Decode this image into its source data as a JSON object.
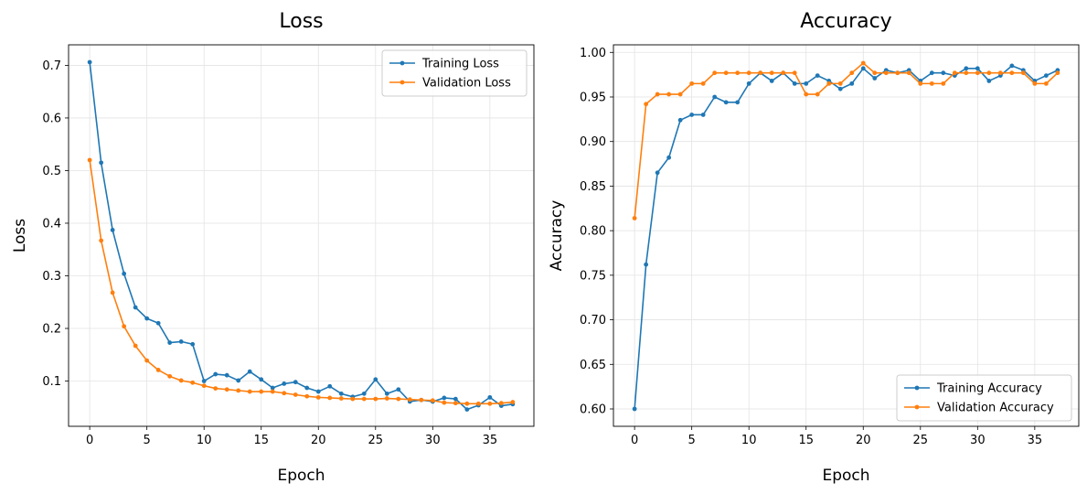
{
  "chart_data": [
    {
      "type": "line",
      "title": "Loss",
      "xlabel": "Epoch",
      "ylabel": "Loss",
      "xlim": [
        -1.85,
        38.85
      ],
      "ylim": [
        0.014,
        0.739
      ],
      "xticks": [
        0,
        5,
        10,
        15,
        20,
        25,
        30,
        35
      ],
      "yticks": [
        0.1,
        0.2,
        0.3,
        0.4,
        0.5,
        0.6,
        0.7
      ],
      "ytick_labels": [
        "0.1",
        "0.2",
        "0.3",
        "0.4",
        "0.5",
        "0.6",
        "0.7"
      ],
      "grid": true,
      "legend_position": "top-right",
      "x": [
        0,
        1,
        2,
        3,
        4,
        5,
        6,
        7,
        8,
        9,
        10,
        11,
        12,
        13,
        14,
        15,
        16,
        17,
        18,
        19,
        20,
        21,
        22,
        23,
        24,
        25,
        26,
        27,
        28,
        29,
        30,
        31,
        32,
        33,
        34,
        35,
        36,
        37
      ],
      "series": [
        {
          "name": "Training Loss",
          "color": "#1f77b4",
          "values": [
            0.706,
            0.515,
            0.387,
            0.304,
            0.24,
            0.219,
            0.21,
            0.173,
            0.175,
            0.17,
            0.1,
            0.113,
            0.111,
            0.101,
            0.118,
            0.103,
            0.087,
            0.095,
            0.098,
            0.087,
            0.08,
            0.09,
            0.076,
            0.07,
            0.076,
            0.103,
            0.076,
            0.084,
            0.061,
            0.064,
            0.061,
            0.068,
            0.066,
            0.046,
            0.054,
            0.069,
            0.053,
            0.056
          ]
        },
        {
          "name": "Validation Loss",
          "color": "#ff7f0e",
          "values": [
            0.52,
            0.367,
            0.268,
            0.204,
            0.167,
            0.139,
            0.121,
            0.109,
            0.101,
            0.097,
            0.091,
            0.086,
            0.084,
            0.082,
            0.08,
            0.08,
            0.08,
            0.077,
            0.074,
            0.071,
            0.069,
            0.068,
            0.067,
            0.066,
            0.066,
            0.066,
            0.067,
            0.066,
            0.065,
            0.064,
            0.063,
            0.059,
            0.058,
            0.057,
            0.057,
            0.057,
            0.058,
            0.06
          ]
        }
      ]
    },
    {
      "type": "line",
      "title": "Accuracy",
      "xlabel": "Epoch",
      "ylabel": "Accuracy",
      "xlim": [
        -1.85,
        38.85
      ],
      "ylim": [
        0.5805,
        1.0085
      ],
      "xticks": [
        0,
        5,
        10,
        15,
        20,
        25,
        30,
        35
      ],
      "yticks": [
        0.6,
        0.65,
        0.7,
        0.75,
        0.8,
        0.85,
        0.9,
        0.95,
        1.0
      ],
      "ytick_labels": [
        "0.60",
        "0.65",
        "0.70",
        "0.75",
        "0.80",
        "0.85",
        "0.90",
        "0.95",
        "1.00"
      ],
      "grid": true,
      "legend_position": "bottom-right",
      "x": [
        0,
        1,
        2,
        3,
        4,
        5,
        6,
        7,
        8,
        9,
        10,
        11,
        12,
        13,
        14,
        15,
        16,
        17,
        18,
        19,
        20,
        21,
        22,
        23,
        24,
        25,
        26,
        27,
        28,
        29,
        30,
        31,
        32,
        33,
        34,
        35,
        36,
        37
      ],
      "series": [
        {
          "name": "Training Accuracy",
          "color": "#1f77b4",
          "values": [
            0.6,
            0.762,
            0.865,
            0.882,
            0.924,
            0.93,
            0.93,
            0.95,
            0.944,
            0.944,
            0.965,
            0.977,
            0.968,
            0.977,
            0.965,
            0.965,
            0.974,
            0.968,
            0.959,
            0.965,
            0.982,
            0.971,
            0.98,
            0.977,
            0.98,
            0.968,
            0.977,
            0.977,
            0.974,
            0.982,
            0.982,
            0.968,
            0.974,
            0.985,
            0.98,
            0.968,
            0.974,
            0.98
          ]
        },
        {
          "name": "Validation Accuracy",
          "color": "#ff7f0e",
          "values": [
            0.814,
            0.942,
            0.953,
            0.953,
            0.953,
            0.965,
            0.965,
            0.977,
            0.977,
            0.977,
            0.977,
            0.977,
            0.977,
            0.977,
            0.977,
            0.953,
            0.953,
            0.965,
            0.965,
            0.977,
            0.988,
            0.977,
            0.977,
            0.977,
            0.977,
            0.965,
            0.965,
            0.965,
            0.977,
            0.977,
            0.977,
            0.977,
            0.977,
            0.977,
            0.977,
            0.965,
            0.965,
            0.977
          ]
        }
      ]
    }
  ]
}
